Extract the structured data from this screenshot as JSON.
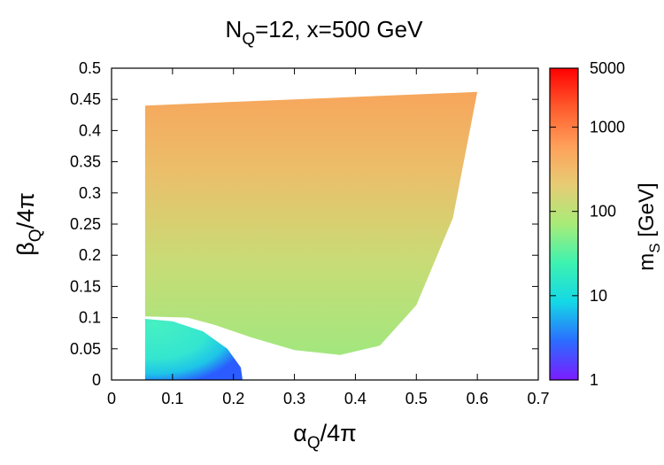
{
  "chart_data": {
    "type": "heatmap",
    "title": {
      "main": "N",
      "sub": "Q",
      "rest": "=12, x=500 GeV"
    },
    "xlabel": {
      "main": "α",
      "sub": "Q",
      "rest": "/4π"
    },
    "ylabel": {
      "main": "β",
      "sub": "Q",
      "rest": "/4π"
    },
    "xlim": [
      0,
      0.7
    ],
    "ylim": [
      0,
      0.5
    ],
    "x_ticks": [
      "0",
      "0.1",
      "0.2",
      "0.3",
      "0.4",
      "0.5",
      "0.6",
      "0.7"
    ],
    "y_ticks": [
      "0",
      "0.05",
      "0.1",
      "0.15",
      "0.2",
      "0.25",
      "0.3",
      "0.35",
      "0.4",
      "0.45",
      "0.5"
    ],
    "grid": false,
    "colorbar": {
      "label": {
        "main": "m",
        "sub": "S",
        "rest": " [GeV]"
      },
      "scale": "log",
      "range": [
        1,
        5000
      ],
      "ticks": [
        "1",
        "10",
        "100",
        "1000",
        "5000"
      ],
      "colors": [
        "#7b1cff",
        "#2b6cff",
        "#14d8e6",
        "#3df2b0",
        "#a8ec78",
        "#e6cc74",
        "#ffa05a",
        "#ff5a2c",
        "#ff0000"
      ]
    },
    "regions": [
      {
        "name": "upper region",
        "boundary_top": [
          [
            0.055,
            0.44
          ],
          [
            0.2,
            0.446
          ],
          [
            0.4,
            0.454
          ],
          [
            0.6,
            0.462
          ]
        ],
        "boundary_right": [
          [
            0.6,
            0.462
          ],
          [
            0.56,
            0.26
          ],
          [
            0.5,
            0.12
          ],
          [
            0.44,
            0.055
          ],
          [
            0.375,
            0.04
          ]
        ],
        "boundary_bottom": [
          [
            0.375,
            0.04
          ],
          [
            0.3,
            0.048
          ],
          [
            0.23,
            0.068
          ],
          [
            0.17,
            0.088
          ],
          [
            0.125,
            0.1
          ],
          [
            0.055,
            0.102
          ]
        ],
        "m_S_GeV": {
          "bottom": 100,
          "middle": 250,
          "top": 900
        }
      },
      {
        "name": "lower region",
        "boundary": [
          [
            0.055,
            0.0
          ],
          [
            0.055,
            0.098
          ],
          [
            0.1,
            0.094
          ],
          [
            0.15,
            0.078
          ],
          [
            0.19,
            0.05
          ],
          [
            0.212,
            0.02
          ],
          [
            0.215,
            0.0
          ]
        ],
        "m_S_GeV": {
          "interior": 40,
          "edge": 3
        }
      }
    ]
  }
}
